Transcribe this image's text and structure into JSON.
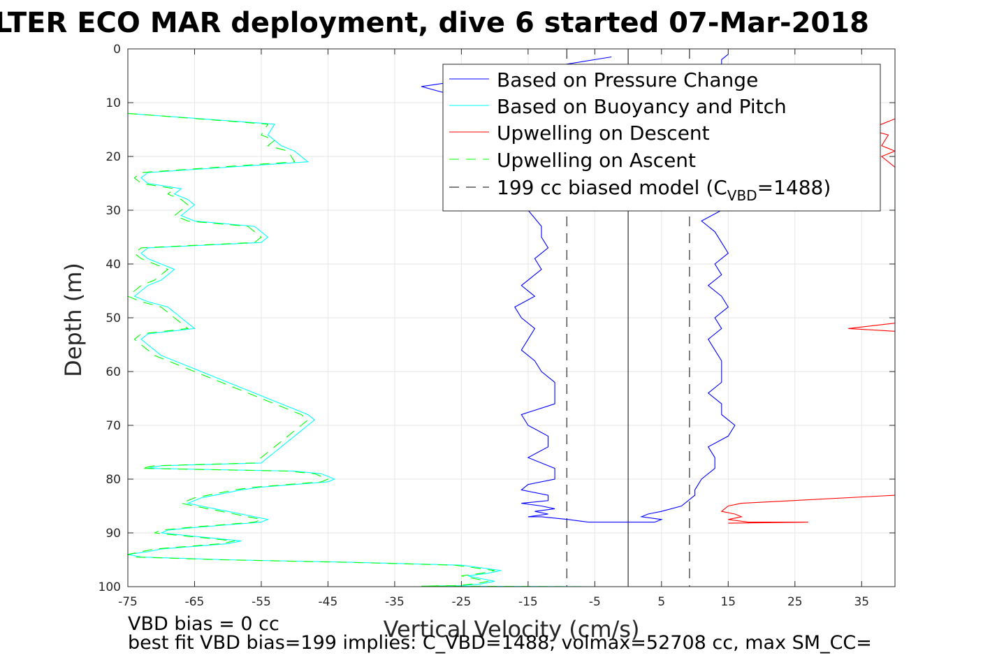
{
  "chart_data": {
    "type": "line",
    "title": "LTER ECO MAR deployment, dive 6 started 07-Mar-2018",
    "xlabel": "Vertical Velocity (cm/s)",
    "ylabel": "Depth (m)",
    "xlim": [
      -75,
      40
    ],
    "ylim": [
      0,
      100
    ],
    "y_reversed": true,
    "x_ticks": [
      -75,
      -65,
      -55,
      -45,
      -35,
      -25,
      -15,
      -5,
      5,
      15,
      25,
      35
    ],
    "y_ticks": [
      0,
      10,
      20,
      30,
      40,
      50,
      60,
      70,
      80,
      90,
      100
    ],
    "grid": true,
    "legend_position": "top-right",
    "legend": [
      {
        "label": "Based on Pressure Change",
        "color": "#0000ff",
        "style": "solid"
      },
      {
        "label": "Based on Buoyancy and Pitch",
        "color": "#00ffff",
        "style": "solid"
      },
      {
        "label": "Upwelling on Descent",
        "color": "#ff0000",
        "style": "solid"
      },
      {
        "label": "Upwelling on Ascent",
        "color": "#00ff00",
        "style": "dashed"
      },
      {
        "label_prefix": "199 cc biased model (C",
        "label_sub": "VBD",
        "label_suffix": "=1488)",
        "color": "#000000",
        "style": "dashed"
      }
    ],
    "series": [
      {
        "name": "Based on Pressure Change",
        "part": "descent",
        "color": "#0000ff",
        "style": "solid",
        "x": [
          -2.5,
          -10,
          -20,
          -31,
          -28,
          -15,
          -15,
          -15,
          -15,
          -13,
          -13,
          -12,
          -14,
          -13,
          -16,
          -14,
          -17,
          -16,
          -14,
          -15,
          -16,
          -14,
          -13,
          -11,
          -11,
          -11,
          -16,
          -15,
          -12,
          -12,
          -15,
          -11,
          -11,
          -15,
          -16,
          -12,
          -12,
          -16,
          -13,
          -11,
          -14,
          -14,
          -12,
          -15,
          -13,
          -9,
          -6,
          -6,
          -5,
          -3,
          0
        ],
        "y": [
          1.5,
          3,
          5,
          7,
          8,
          12,
          20,
          27,
          30,
          33,
          35,
          37,
          39,
          41,
          44,
          46,
          48,
          50,
          52,
          54,
          56,
          58,
          60,
          62,
          64,
          66,
          68,
          70,
          72,
          74,
          76,
          78,
          80,
          81,
          82,
          83,
          84,
          84.5,
          85,
          85.5,
          86,
          86,
          86.5,
          87,
          87,
          87.5,
          88,
          88,
          88,
          88,
          88
        ]
      },
      {
        "name": "Based on Pressure Change",
        "part": "ascent",
        "color": "#0000ff",
        "style": "solid",
        "x": [
          0,
          4,
          5,
          2,
          3,
          5,
          8,
          9,
          10,
          10,
          11,
          13,
          13,
          12,
          15,
          16,
          14,
          14,
          12,
          14,
          14,
          14,
          13,
          12,
          14,
          13,
          15,
          14,
          12,
          14,
          13,
          15,
          14,
          13,
          11,
          14,
          13,
          11,
          11,
          12,
          14,
          12,
          13,
          15,
          12,
          14,
          15,
          13,
          15,
          13,
          13,
          14,
          14,
          15
        ],
        "y": [
          88,
          88,
          87.5,
          87,
          86.5,
          86,
          85,
          84,
          83,
          82,
          80,
          78,
          76,
          74,
          72,
          70,
          68,
          66,
          64,
          62,
          60,
          58,
          56,
          54,
          52,
          50,
          48,
          46,
          44,
          42,
          40,
          38,
          36,
          34,
          32,
          30,
          28,
          26,
          24,
          22,
          20,
          18,
          16,
          14,
          12,
          10,
          8,
          7,
          6,
          5,
          4,
          3,
          2,
          1
        ]
      },
      {
        "name": "Based on Buoyancy and Pitch",
        "color": "#00ffff",
        "style": "solid",
        "x": [
          -75,
          -53,
          -54,
          -53,
          -52,
          -50,
          -48,
          -72,
          -73,
          -72,
          -67,
          -68,
          -66,
          -65,
          -66,
          -67,
          -65,
          -56,
          -55,
          -54,
          -55,
          -72,
          -73,
          -72,
          -70,
          -68,
          -69,
          -70,
          -72,
          -73,
          -74,
          -72,
          -69,
          -68,
          -67,
          -66,
          -65,
          -72,
          -73,
          -72,
          -71,
          -70,
          -68,
          -66,
          -64,
          -62,
          -60,
          -58,
          -56,
          -54,
          -52,
          -50,
          -48,
          -47,
          -48,
          -49,
          -50,
          -51,
          -52,
          -53,
          -54,
          -55,
          -70,
          -72,
          -50,
          -46,
          -44,
          -45,
          -50,
          -55,
          -58,
          -60,
          -62,
          -64,
          -65,
          -66,
          -64,
          -62,
          -60,
          -58,
          -56,
          -54,
          -55,
          -60,
          -65,
          -69,
          -70,
          -66,
          -62,
          -58,
          -60,
          -65,
          -70,
          -72,
          -75,
          -73,
          -60,
          -40,
          -25,
          -22,
          -19,
          -21,
          -24,
          -22,
          -20,
          -22,
          -25,
          -30,
          -5
        ],
        "y": [
          12,
          14,
          16,
          17,
          18,
          19,
          21,
          23,
          24,
          25,
          26,
          27,
          28,
          29,
          30,
          31,
          32,
          33,
          34,
          35,
          36,
          37,
          38,
          39,
          40,
          41,
          42,
          43,
          44,
          45,
          46,
          47,
          48,
          49,
          50,
          51,
          52,
          53,
          54,
          55,
          56,
          57,
          58,
          59,
          60,
          61,
          62,
          63,
          64,
          65,
          66,
          67,
          68,
          69,
          70,
          71,
          72,
          73,
          74,
          75,
          76,
          77,
          77.5,
          78,
          78.5,
          79,
          80,
          80.5,
          81,
          81.5,
          82,
          82.5,
          83,
          83.5,
          84,
          84.5,
          85,
          85.5,
          86,
          86.5,
          87,
          87.5,
          88,
          88.5,
          89,
          89.5,
          90,
          90.5,
          91,
          91.5,
          92,
          92.5,
          93,
          93.5,
          94,
          94.5,
          95,
          95.5,
          96,
          96.5,
          97,
          97.5,
          98,
          98.5,
          99,
          99.5,
          99.8,
          99.9,
          100
        ]
      },
      {
        "name": "Upwelling on Ascent",
        "color": "#00ff00",
        "style": "dashed",
        "x": [
          -75,
          -54,
          -55,
          -53,
          -54,
          -51,
          -50,
          -73,
          -74,
          -73,
          -68,
          -69,
          -67,
          -66,
          -67,
          -68,
          -66,
          -57,
          -56,
          -55,
          -56,
          -73,
          -74,
          -73,
          -71,
          -69,
          -70,
          -71,
          -73,
          -74,
          -75,
          -73,
          -70,
          -69,
          -68,
          -67,
          -66,
          -73,
          -74,
          -73,
          -72,
          -71,
          -69,
          -67,
          -65,
          -63,
          -61,
          -59,
          -57,
          -55,
          -53,
          -51,
          -49,
          -48,
          -49,
          -50,
          -51,
          -52,
          -53,
          -54,
          -55,
          -56,
          -71,
          -73,
          -51,
          -47,
          -45,
          -46,
          -51,
          -56,
          -59,
          -61,
          -63,
          -65,
          -66,
          -67,
          -65,
          -63,
          -61,
          -59,
          -57,
          -55,
          -56,
          -61,
          -66,
          -70,
          -71,
          -67,
          -63,
          -59,
          -61,
          -66,
          -71,
          -73,
          -75,
          -74,
          -61,
          -41,
          -26,
          -23,
          -20,
          -22,
          -25,
          -23,
          -21,
          -23,
          -26,
          -31,
          -6
        ],
        "y": [
          12,
          14,
          16,
          17,
          18,
          19,
          21,
          23,
          24,
          25,
          26,
          27,
          28,
          29,
          30,
          31,
          32,
          33,
          34,
          35,
          36,
          37,
          38,
          39,
          40,
          41,
          42,
          43,
          44,
          45,
          46,
          47,
          48,
          49,
          50,
          51,
          52,
          53,
          54,
          55,
          56,
          57,
          58,
          59,
          60,
          61,
          62,
          63,
          64,
          65,
          66,
          67,
          68,
          69,
          70,
          71,
          72,
          73,
          74,
          75,
          76,
          77,
          77.5,
          78,
          78.5,
          79,
          80,
          80.5,
          81,
          81.5,
          82,
          82.5,
          83,
          83.5,
          84,
          84.5,
          85,
          85.5,
          86,
          86.5,
          87,
          87.5,
          88,
          88.5,
          89,
          89.5,
          90,
          90.5,
          91,
          91.5,
          92,
          92.5,
          93,
          93.5,
          94,
          94.5,
          95,
          95.5,
          96,
          96.5,
          97,
          97.5,
          98,
          98.5,
          99,
          99.5,
          99.8,
          99.9,
          100
        ]
      },
      {
        "name": "Upwelling on Descent",
        "color": "#ff0000",
        "style": "solid",
        "x": [
          40,
          36,
          39,
          38,
          40,
          38,
          40,
          40,
          33,
          40,
          40,
          17,
          15,
          14,
          16,
          17,
          15,
          18,
          27,
          15
        ],
        "y": [
          13,
          15,
          16,
          18,
          19,
          20,
          22,
          51,
          52,
          52.5,
          83,
          84.5,
          85,
          86,
          86.5,
          87,
          87.5,
          88,
          88,
          88.2
        ]
      }
    ],
    "reference_lines": [
      {
        "name": "199 cc biased model",
        "x": -9.2,
        "color": "#000000",
        "style": "dashed"
      },
      {
        "name": "199 cc biased model",
        "x": 9.2,
        "color": "#000000",
        "style": "dashed"
      },
      {
        "name": "zero",
        "x": 0,
        "color": "#000000",
        "style": "solid"
      }
    ]
  },
  "footer": {
    "line1": "VBD bias = 0 cc",
    "line2": "best fit VBD bias=199 implies: C_VBD=1488, volmax=52708 cc, max SM_CC="
  }
}
